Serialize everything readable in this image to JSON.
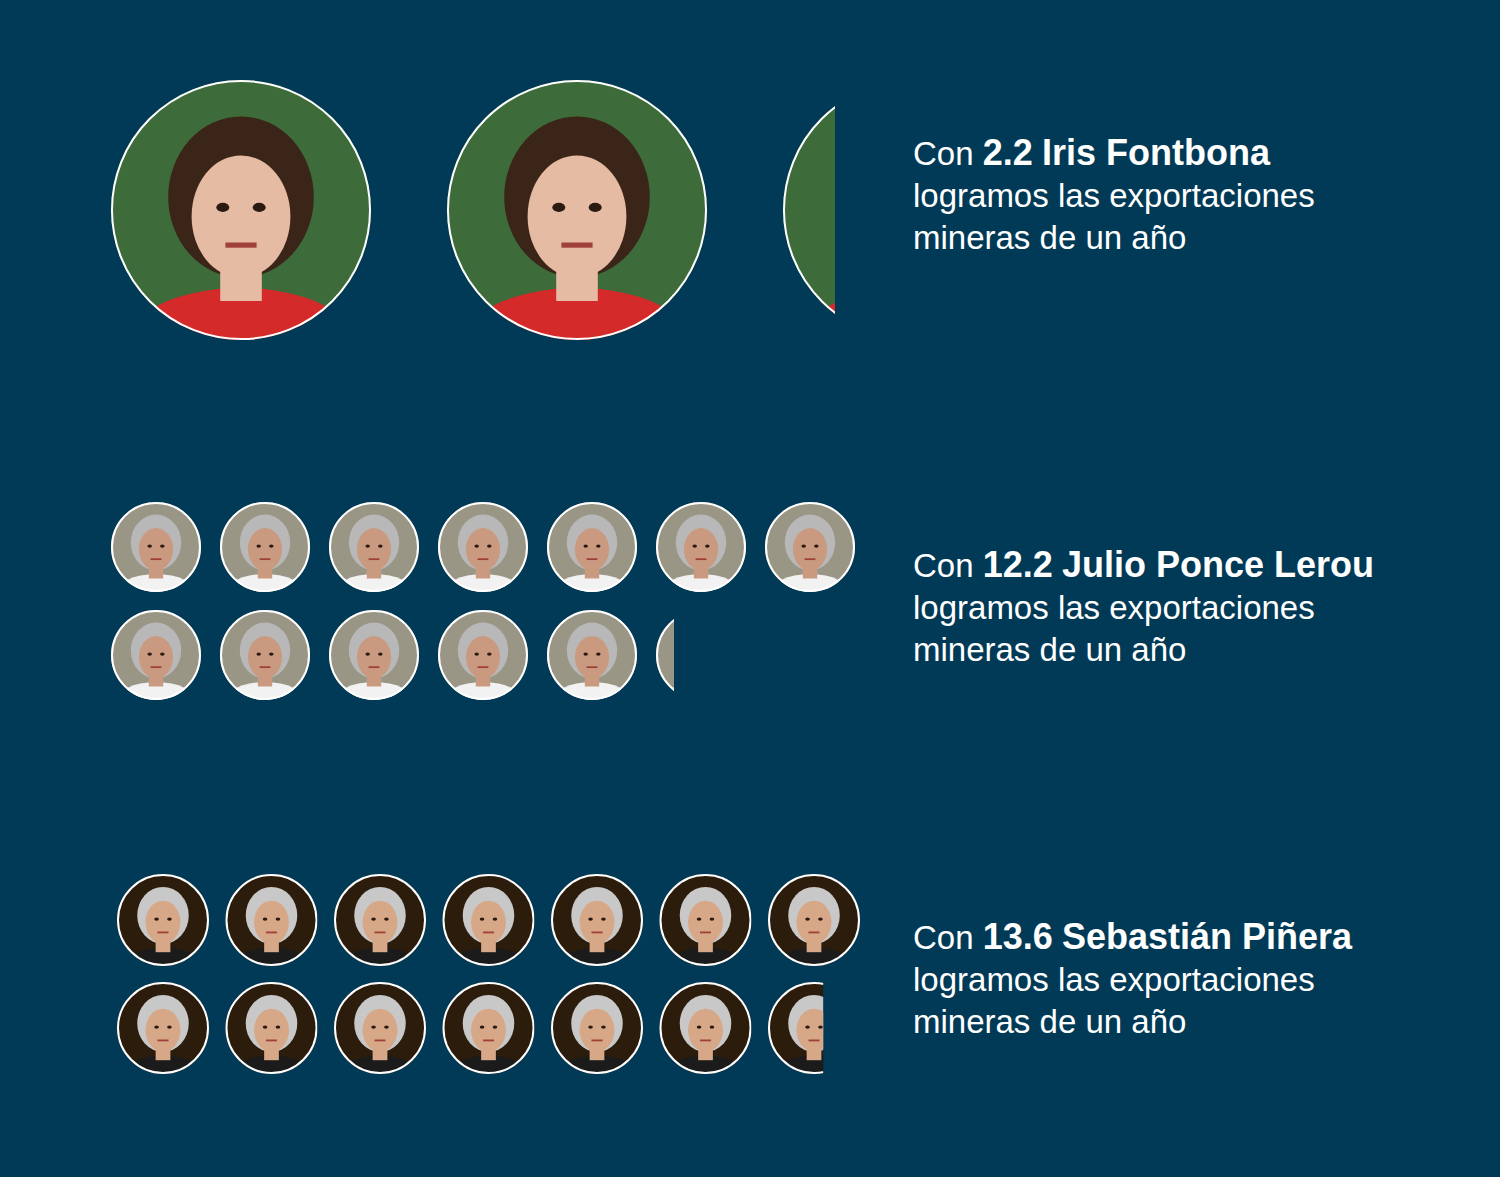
{
  "chart_data": {
    "type": "pictogram",
    "categories": [
      "Iris Fontbona",
      "Julio Ponce Lerou",
      "Sebastián Piñera"
    ],
    "values": [
      2.2,
      12.2,
      13.6
    ],
    "data_labels": true,
    "colors": [
      "#3d6b3a",
      "#9a9686",
      "#2b1c0c"
    ],
    "text_before": "Con",
    "text_after": [
      "logramos las exportaciones",
      "mineras de un año"
    ]
  }
}
